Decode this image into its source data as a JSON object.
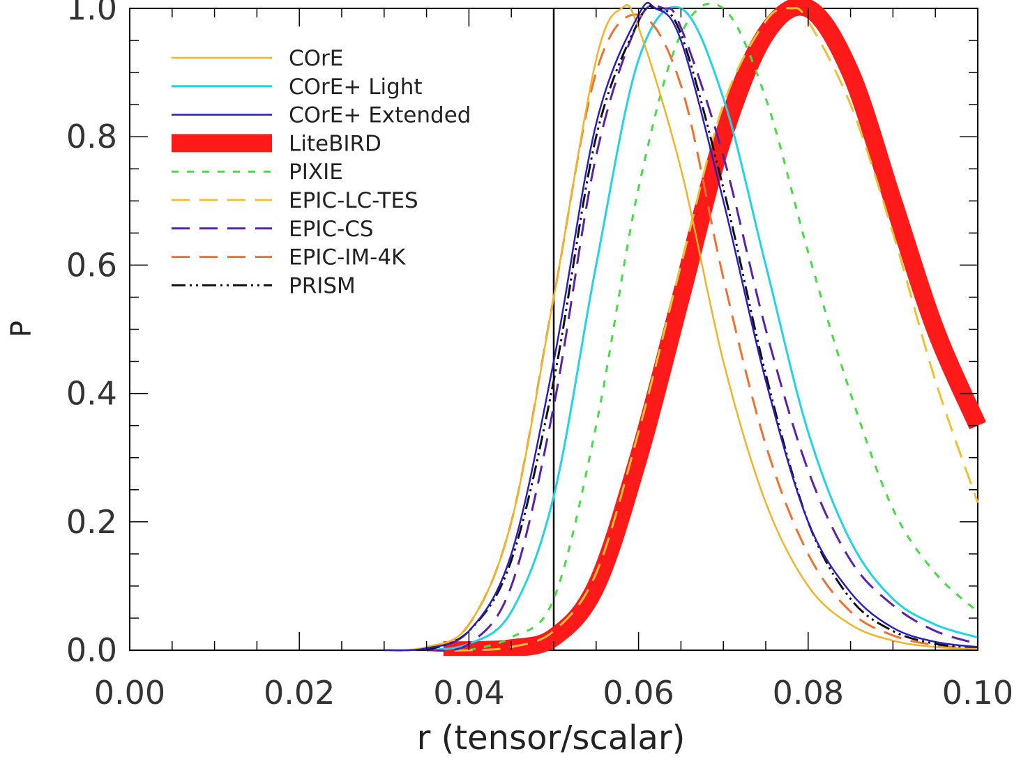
{
  "chart_data": {
    "type": "line",
    "title": "",
    "xlabel": "r (tensor/scalar)",
    "ylabel": "P",
    "xlim": [
      0.0,
      0.1
    ],
    "ylim": [
      0.0,
      1.0
    ],
    "x_ticks": [
      "0.00",
      "0.02",
      "0.04",
      "0.06",
      "0.08",
      "0.10"
    ],
    "y_ticks": [
      "0.0",
      "0.2",
      "0.4",
      "0.6",
      "0.8",
      "1.0"
    ],
    "x_tick_values": [
      0.0,
      0.02,
      0.04,
      0.06,
      0.08,
      0.1
    ],
    "y_tick_values": [
      0.0,
      0.2,
      0.4,
      0.6,
      0.8,
      1.0
    ],
    "vertical_line": {
      "x": 0.05,
      "color": "#000000"
    },
    "legend_position": "top-left",
    "grid": false,
    "series": [
      {
        "name": "COrE",
        "color": "#f0b429",
        "style": "solid",
        "width": 2.5,
        "x_start": 0.03,
        "x": [
          0.03,
          0.035,
          0.04,
          0.045,
          0.05,
          0.055,
          0.058,
          0.06,
          0.065,
          0.07,
          0.075,
          0.08,
          0.085,
          0.09,
          0.095,
          0.1
        ],
        "y": [
          0.0,
          0.005,
          0.04,
          0.2,
          0.55,
          0.92,
          1.0,
          0.97,
          0.75,
          0.45,
          0.23,
          0.1,
          0.04,
          0.015,
          0.005,
          0.002
        ]
      },
      {
        "name": "COrE+ Light",
        "color": "#22d3e6",
        "style": "solid",
        "width": 3,
        "x_start": 0.035,
        "x": [
          0.035,
          0.04,
          0.045,
          0.05,
          0.055,
          0.06,
          0.065,
          0.07,
          0.075,
          0.08,
          0.085,
          0.09,
          0.095,
          0.1
        ],
        "y": [
          0.0,
          0.01,
          0.06,
          0.24,
          0.6,
          0.92,
          1.0,
          0.86,
          0.6,
          0.34,
          0.17,
          0.08,
          0.04,
          0.02
        ]
      },
      {
        "name": "COrE+ Extended",
        "color": "#2a1fb8",
        "style": "solid",
        "width": 2.5,
        "x_start": 0.03,
        "x": [
          0.03,
          0.035,
          0.04,
          0.045,
          0.05,
          0.055,
          0.06,
          0.062,
          0.065,
          0.07,
          0.075,
          0.08,
          0.085,
          0.09,
          0.095,
          0.1
        ],
        "y": [
          0.0,
          0.003,
          0.03,
          0.15,
          0.45,
          0.82,
          0.99,
          1.0,
          0.95,
          0.7,
          0.42,
          0.2,
          0.09,
          0.035,
          0.013,
          0.005
        ]
      },
      {
        "name": "LiteBIRD",
        "color": "#ff1a1a",
        "style": "solid",
        "width": 26,
        "x_start": 0.037,
        "x": [
          0.037,
          0.04,
          0.045,
          0.05,
          0.055,
          0.06,
          0.065,
          0.07,
          0.075,
          0.08,
          0.085,
          0.09,
          0.095,
          0.1
        ],
        "y": [
          0.0,
          0.0,
          0.003,
          0.02,
          0.1,
          0.3,
          0.55,
          0.8,
          0.96,
          1.0,
          0.9,
          0.7,
          0.5,
          0.35
        ]
      },
      {
        "name": "PIXIE",
        "color": "#44dd44",
        "style": "short-dash",
        "width": 3,
        "x_start": 0.04,
        "x": [
          0.04,
          0.045,
          0.05,
          0.055,
          0.06,
          0.065,
          0.07,
          0.075,
          0.08,
          0.085,
          0.09,
          0.095,
          0.1
        ],
        "y": [
          0.0,
          0.02,
          0.08,
          0.35,
          0.72,
          0.96,
          1.0,
          0.86,
          0.62,
          0.4,
          0.22,
          0.12,
          0.06
        ]
      },
      {
        "name": "EPIC-LC-TES",
        "color": "#f0c030",
        "style": "long-dash",
        "width": 3,
        "x_start": 0.035,
        "x": [
          0.035,
          0.04,
          0.045,
          0.05,
          0.055,
          0.06,
          0.065,
          0.07,
          0.075,
          0.078,
          0.08,
          0.085,
          0.09,
          0.095,
          0.1
        ],
        "y": [
          0.0,
          0.0,
          0.005,
          0.03,
          0.12,
          0.34,
          0.6,
          0.85,
          0.98,
          1.0,
          0.98,
          0.85,
          0.65,
          0.42,
          0.23
        ]
      },
      {
        "name": "EPIC-CS",
        "color": "#5a22a8",
        "style": "long-dash",
        "width": 3,
        "x_start": 0.035,
        "x": [
          0.035,
          0.04,
          0.045,
          0.05,
          0.055,
          0.06,
          0.063,
          0.065,
          0.07,
          0.075,
          0.08,
          0.085,
          0.09,
          0.095,
          0.1
        ],
        "y": [
          0.0,
          0.01,
          0.1,
          0.38,
          0.77,
          0.98,
          1.0,
          0.97,
          0.77,
          0.5,
          0.28,
          0.14,
          0.07,
          0.03,
          0.01
        ]
      },
      {
        "name": "EPIC-IM-4K",
        "color": "#f07030",
        "style": "long-dash",
        "width": 3,
        "x_start": 0.03,
        "x": [
          0.03,
          0.035,
          0.04,
          0.045,
          0.05,
          0.055,
          0.06,
          0.065,
          0.07,
          0.075,
          0.08,
          0.085,
          0.09,
          0.095,
          0.1
        ],
        "y": [
          0.0,
          0.004,
          0.04,
          0.2,
          0.55,
          0.9,
          0.99,
          0.88,
          0.58,
          0.32,
          0.15,
          0.06,
          0.023,
          0.008,
          0.002
        ]
      },
      {
        "name": "PRISM",
        "color": "#111111",
        "style": "dash-dot-dot",
        "width": 3,
        "x_start": 0.035,
        "x": [
          0.035,
          0.04,
          0.045,
          0.05,
          0.055,
          0.06,
          0.062,
          0.065,
          0.07,
          0.075,
          0.08,
          0.085,
          0.09,
          0.095,
          0.1
        ],
        "y": [
          0.0,
          0.03,
          0.14,
          0.42,
          0.8,
          0.98,
          1.0,
          0.96,
          0.72,
          0.43,
          0.2,
          0.08,
          0.03,
          0.01,
          0.003
        ]
      }
    ]
  }
}
